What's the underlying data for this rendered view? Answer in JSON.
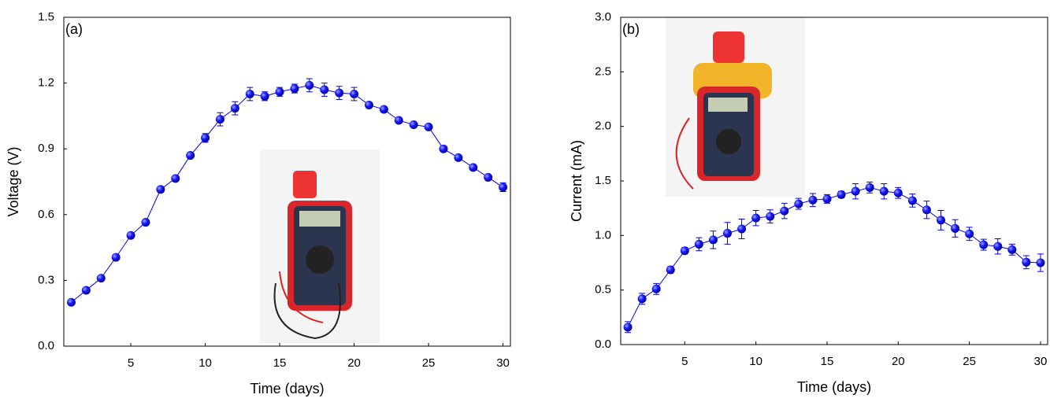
{
  "chart_data": [
    {
      "type": "line",
      "panel_label": "(a)",
      "xlabel": "Time (days)",
      "ylabel": "Voltage (V)",
      "color": "#0000ee",
      "x": [
        1,
        2,
        3,
        4,
        5,
        6,
        7,
        8,
        9,
        10,
        11,
        12,
        13,
        14,
        15,
        16,
        17,
        18,
        19,
        20,
        21,
        22,
        23,
        24,
        25,
        26,
        27,
        28,
        29,
        30
      ],
      "values": [
        0.2,
        0.255,
        0.31,
        0.405,
        0.505,
        0.565,
        0.715,
        0.765,
        0.87,
        0.95,
        1.035,
        1.085,
        1.15,
        1.14,
        1.16,
        1.175,
        1.19,
        1.17,
        1.155,
        1.15,
        1.1,
        1.08,
        1.03,
        1.01,
        1.0,
        0.9,
        0.86,
        0.815,
        0.77,
        0.725
      ],
      "errors": [
        0.01,
        0.01,
        0.01,
        0.01,
        0.01,
        0.01,
        0.01,
        0.01,
        0.01,
        0.02,
        0.03,
        0.03,
        0.03,
        0.02,
        0.02,
        0.02,
        0.03,
        0.03,
        0.03,
        0.03,
        0.01,
        0.01,
        0.01,
        0.01,
        0.01,
        0.01,
        0.01,
        0.01,
        0.01,
        0.02
      ],
      "xlim": [
        0.5,
        30.5
      ],
      "ylim": [
        0,
        1.5
      ],
      "xticks": [
        5,
        10,
        15,
        20,
        25,
        30
      ],
      "yticks": [
        {
          "value": 0,
          "label": "0.0"
        },
        0.3,
        0.6,
        0.9,
        1.2,
        1.5
      ]
    },
    {
      "type": "line",
      "panel_label": "(b)",
      "xlabel": "Time (days)",
      "ylabel": "Current (mA)",
      "color": "#0000ee",
      "x": [
        1,
        2,
        3,
        4,
        5,
        6,
        7,
        8,
        9,
        10,
        11,
        12,
        13,
        14,
        15,
        16,
        17,
        18,
        19,
        20,
        21,
        22,
        23,
        24,
        25,
        26,
        27,
        28,
        29,
        30
      ],
      "values": [
        0.16,
        0.42,
        0.51,
        0.685,
        0.86,
        0.92,
        0.96,
        1.02,
        1.06,
        1.16,
        1.175,
        1.225,
        1.29,
        1.325,
        1.335,
        1.375,
        1.405,
        1.44,
        1.405,
        1.39,
        1.32,
        1.235,
        1.14,
        1.065,
        1.015,
        0.915,
        0.9,
        0.87,
        0.755,
        0.75
      ],
      "errors": [
        0.05,
        0.05,
        0.05,
        0.03,
        0.03,
        0.06,
        0.08,
        0.1,
        0.09,
        0.07,
        0.06,
        0.07,
        0.05,
        0.06,
        0.04,
        0.03,
        0.07,
        0.05,
        0.07,
        0.05,
        0.06,
        0.08,
        0.09,
        0.08,
        0.06,
        0.05,
        0.07,
        0.05,
        0.06,
        0.08
      ],
      "xlim": [
        0.5,
        30.5
      ],
      "ylim": [
        0,
        3.0
      ],
      "xticks": [
        5,
        10,
        15,
        20,
        25,
        30
      ],
      "yticks": [
        {
          "value": 0,
          "label": "0.0"
        },
        0.5,
        {
          "value": 1,
          "label": "1.0"
        },
        1.5,
        {
          "value": 2,
          "label": "2.0"
        },
        2.5,
        {
          "value": 3,
          "label": "3.0"
        }
      ]
    }
  ]
}
